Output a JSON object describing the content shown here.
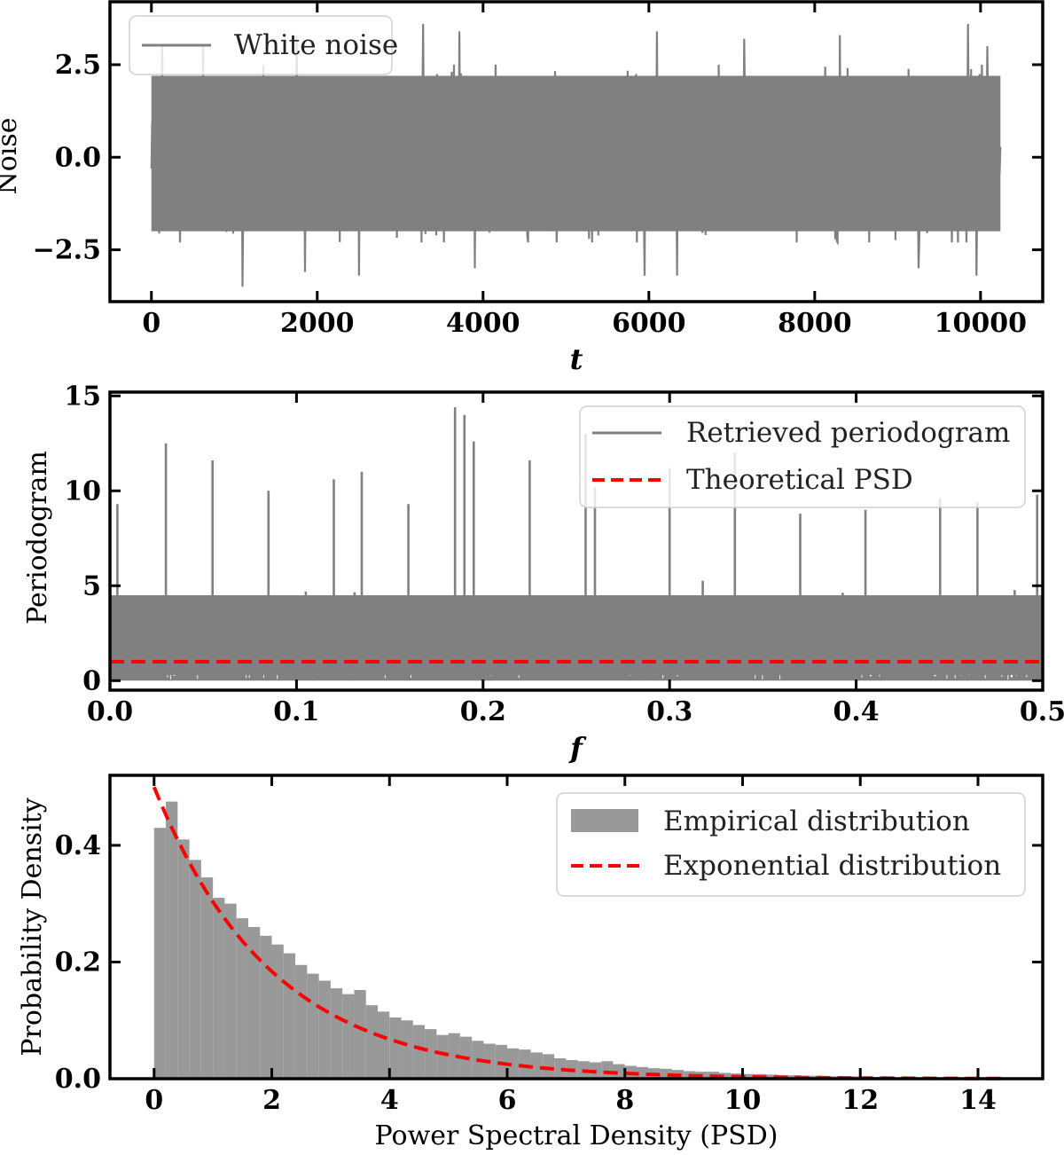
{
  "colors": {
    "gray": "#808080",
    "bar": "#999999",
    "red": "#ff0000",
    "axis": "#000000"
  },
  "chart_data": [
    {
      "type": "line",
      "ylabel": "Noise",
      "xlabel": "t",
      "xlim": [
        -500,
        10750
      ],
      "ylim": [
        -3.9,
        4.2
      ],
      "xticks": [
        0,
        2000,
        4000,
        6000,
        8000,
        10000
      ],
      "xtick_labels": [
        "0",
        "2000",
        "4000",
        "6000",
        "8000",
        "10000"
      ],
      "yticks": [
        -2.5,
        0.0,
        2.5
      ],
      "ytick_labels": [
        "−2.5",
        "0.0",
        "2.5"
      ],
      "legend_position": "top-left",
      "series": [
        {
          "name": "White noise",
          "style": "solid",
          "x_range": [
            0,
            10240
          ],
          "band": [
            -2.0,
            2.2
          ],
          "peaks_high": [
            [
              130,
              3.0
            ],
            [
              620,
              3.0
            ],
            [
              1750,
              3.3
            ],
            [
              3280,
              3.6
            ],
            [
              3710,
              3.4
            ],
            [
              6100,
              3.4
            ],
            [
              7150,
              3.2
            ],
            [
              8300,
              3.3
            ],
            [
              9850,
              3.6
            ],
            [
              10080,
              3.0
            ]
          ],
          "peaks_low": [
            [
              1100,
              -3.5
            ],
            [
              1850,
              -3.1
            ],
            [
              2500,
              -3.2
            ],
            [
              3900,
              -3.0
            ],
            [
              5950,
              -3.2
            ],
            [
              6340,
              -3.2
            ],
            [
              9250,
              -3.0
            ],
            [
              9950,
              -3.2
            ]
          ]
        }
      ]
    },
    {
      "type": "line",
      "ylabel": "Periodogram",
      "xlabel": "f",
      "xlim": [
        0.0,
        0.5
      ],
      "ylim": [
        -0.5,
        15.2
      ],
      "xticks": [
        0.0,
        0.1,
        0.2,
        0.3,
        0.4,
        0.5
      ],
      "xtick_labels": [
        "0.0",
        "0.1",
        "0.2",
        "0.3",
        "0.4",
        "0.5"
      ],
      "yticks": [
        0,
        5,
        10,
        15
      ],
      "ytick_labels": [
        "0",
        "5",
        "10",
        "15"
      ],
      "legend_position": "top-right",
      "series": [
        {
          "name": "Retrieved periodogram",
          "style": "solid",
          "x_range": [
            0.0,
            0.5
          ],
          "band": [
            0.0,
            4.5
          ],
          "peaks": [
            [
              0.004,
              9.3
            ],
            [
              0.03,
              12.5
            ],
            [
              0.055,
              11.6
            ],
            [
              0.085,
              10.0
            ],
            [
              0.12,
              10.6
            ],
            [
              0.135,
              11.0
            ],
            [
              0.16,
              9.3
            ],
            [
              0.185,
              14.4
            ],
            [
              0.19,
              14.0
            ],
            [
              0.195,
              12.6
            ],
            [
              0.225,
              11.6
            ],
            [
              0.255,
              13.0
            ],
            [
              0.26,
              10.2
            ],
            [
              0.3,
              11.2
            ],
            [
              0.335,
              12.0
            ],
            [
              0.37,
              8.8
            ],
            [
              0.405,
              9.0
            ],
            [
              0.445,
              9.6
            ],
            [
              0.465,
              9.4
            ],
            [
              0.497,
              9.8
            ]
          ]
        },
        {
          "name": "Theoretical PSD",
          "style": "dashed",
          "x": [
            0.0,
            0.5
          ],
          "y": [
            1.0,
            1.0
          ]
        }
      ]
    },
    {
      "type": "bar",
      "ylabel": "Probability Density",
      "xlabel": "Power Spectral Density (PSD)",
      "xlim": [
        -0.75,
        15.1
      ],
      "ylim": [
        0.0,
        0.52
      ],
      "xticks": [
        0,
        2,
        4,
        6,
        8,
        10,
        12,
        14
      ],
      "xtick_labels": [
        "0",
        "2",
        "4",
        "6",
        "8",
        "10",
        "12",
        "14"
      ],
      "yticks": [
        0.0,
        0.2,
        0.4
      ],
      "ytick_labels": [
        "0.0",
        "0.2",
        "0.4"
      ],
      "legend_position": "top-right",
      "series": [
        {
          "name": "Empirical distribution",
          "style": "bars",
          "bin_width": 0.2,
          "bin_start": 0.0,
          "values": [
            0.43,
            0.475,
            0.41,
            0.375,
            0.345,
            0.31,
            0.3,
            0.275,
            0.26,
            0.245,
            0.23,
            0.215,
            0.195,
            0.18,
            0.168,
            0.155,
            0.145,
            0.152,
            0.126,
            0.115,
            0.105,
            0.1,
            0.092,
            0.085,
            0.075,
            0.078,
            0.072,
            0.065,
            0.06,
            0.058,
            0.052,
            0.05,
            0.045,
            0.042,
            0.035,
            0.032,
            0.03,
            0.028,
            0.03,
            0.025,
            0.022,
            0.02,
            0.018,
            0.017,
            0.015,
            0.013,
            0.012,
            0.012,
            0.01,
            0.009,
            0.008,
            0.008,
            0.007,
            0.006,
            0.006,
            0.005,
            0.005,
            0.004,
            0.004,
            0.004,
            0.003,
            0.003,
            0.003,
            0.002,
            0.002,
            0.002,
            0.002,
            0.002,
            0.001,
            0.001,
            0.001,
            0.001,
            0.001,
            0.001,
            0.001
          ]
        },
        {
          "name": "Exponential distribution",
          "style": "dashed",
          "function": "0.5*exp(-0.5*x)",
          "x_range": [
            0.0,
            14.5
          ]
        }
      ]
    }
  ]
}
